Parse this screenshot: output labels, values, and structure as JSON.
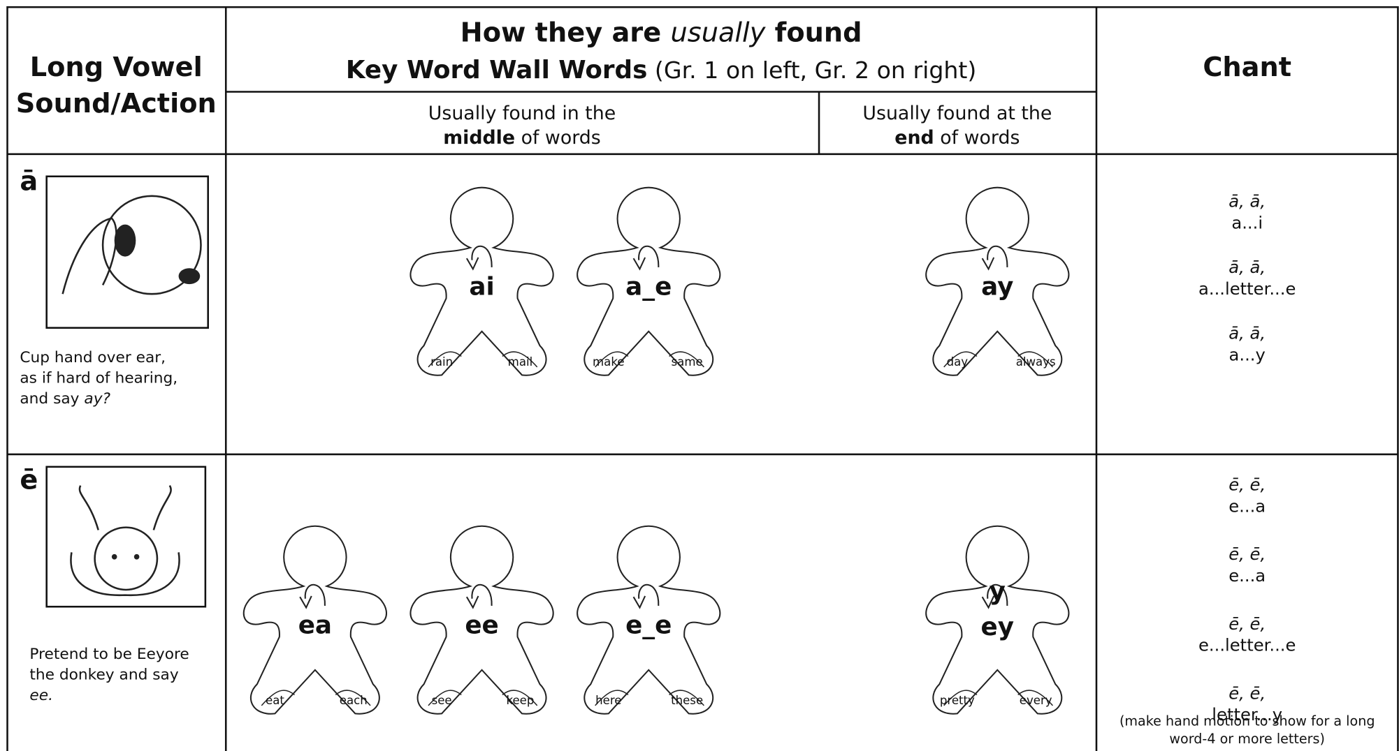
{
  "header": {
    "first_column": [
      "Long Vowel",
      "Sound/Action"
    ],
    "title_line1": {
      "before": "How they are ",
      "emphasis": "usually",
      "after": " found"
    },
    "title_line2": {
      "bold": "Key Word Wall Words",
      "note": " (Gr. 1 on left, Gr. 2 on right)"
    },
    "middle": {
      "line1": "Usually found in the",
      "bold": "middle",
      "rest": " of words"
    },
    "end": {
      "line1": "Usually found at the",
      "bold": "end",
      "rest": " of words"
    },
    "chant": "Chant"
  },
  "rows": [
    {
      "vowel": "ā",
      "description": [
        "Cup hand over ear,",
        "as if hard of hearing,",
        "and say "
      ],
      "description_emphasis": "ay?",
      "middle": [
        {
          "labels": [
            "ai"
          ],
          "words": [
            "rain",
            "mail"
          ]
        },
        {
          "labels": [
            "a_e"
          ],
          "words": [
            "make",
            "same"
          ]
        }
      ],
      "end": [
        {
          "labels": [
            "ay"
          ],
          "words": [
            "day",
            "always"
          ]
        }
      ],
      "chant": [
        {
          "sound": "ā, ā,",
          "pattern": "a...i"
        },
        {
          "sound": "ā, ā,",
          "pattern": "a...letter...e"
        },
        {
          "sound": "ā, ā,",
          "pattern": "a...y"
        }
      ]
    },
    {
      "vowel": "ē",
      "description": [
        "Pretend to be Eeyore",
        "the donkey and say"
      ],
      "description_emphasis": "ee.",
      "middle": [
        {
          "labels": [
            "ea"
          ],
          "words": [
            "eat",
            "each"
          ]
        },
        {
          "labels": [
            "ee"
          ],
          "words": [
            "see",
            "keep"
          ]
        },
        {
          "labels": [
            "e_e"
          ],
          "words": [
            "here",
            "these"
          ]
        }
      ],
      "end": [
        {
          "labels": [
            "y",
            "ey"
          ],
          "words": [
            "pretty",
            "every"
          ]
        }
      ],
      "chant": [
        {
          "sound": "ē, ē,",
          "pattern": "e...a"
        },
        {
          "sound": "ē, ē,",
          "pattern": "e...a"
        },
        {
          "sound": "ē, ē,",
          "pattern": "e...letter...e"
        },
        {
          "sound": "ē, ē,",
          "pattern": "letter...y"
        }
      ],
      "chant_note": [
        "(make hand motion to show for a long",
        "word-4 or more letters)"
      ]
    }
  ]
}
